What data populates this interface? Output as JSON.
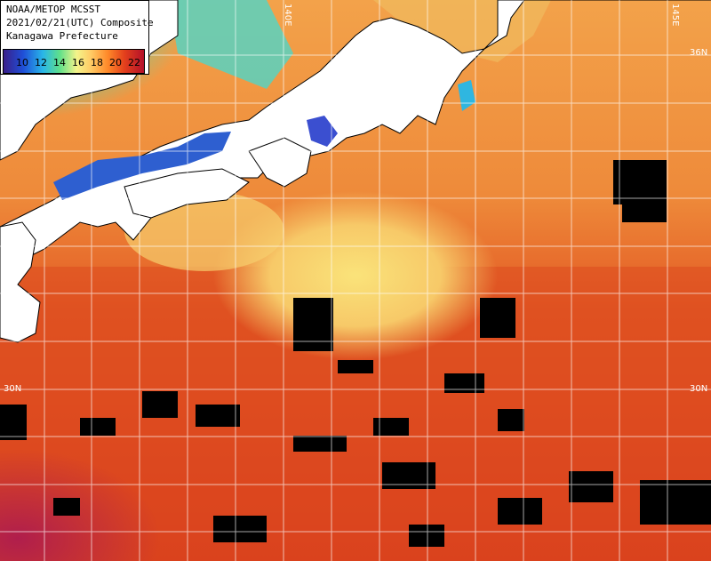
{
  "info": {
    "line1": "NOAA/METOP MCSST",
    "line2": "2021/02/21(UTC) Composite",
    "line3": "Kanagawa Prefecture"
  },
  "legend": {
    "labels": [
      "10",
      "12",
      "14",
      "16",
      "18",
      "20",
      "22"
    ]
  },
  "grid_labels": {
    "lat_36n": "36N",
    "lat_30n_left": "30N",
    "lat_30n_right": "30N",
    "lon_140e": "140E",
    "lon_145e": "145E"
  }
}
